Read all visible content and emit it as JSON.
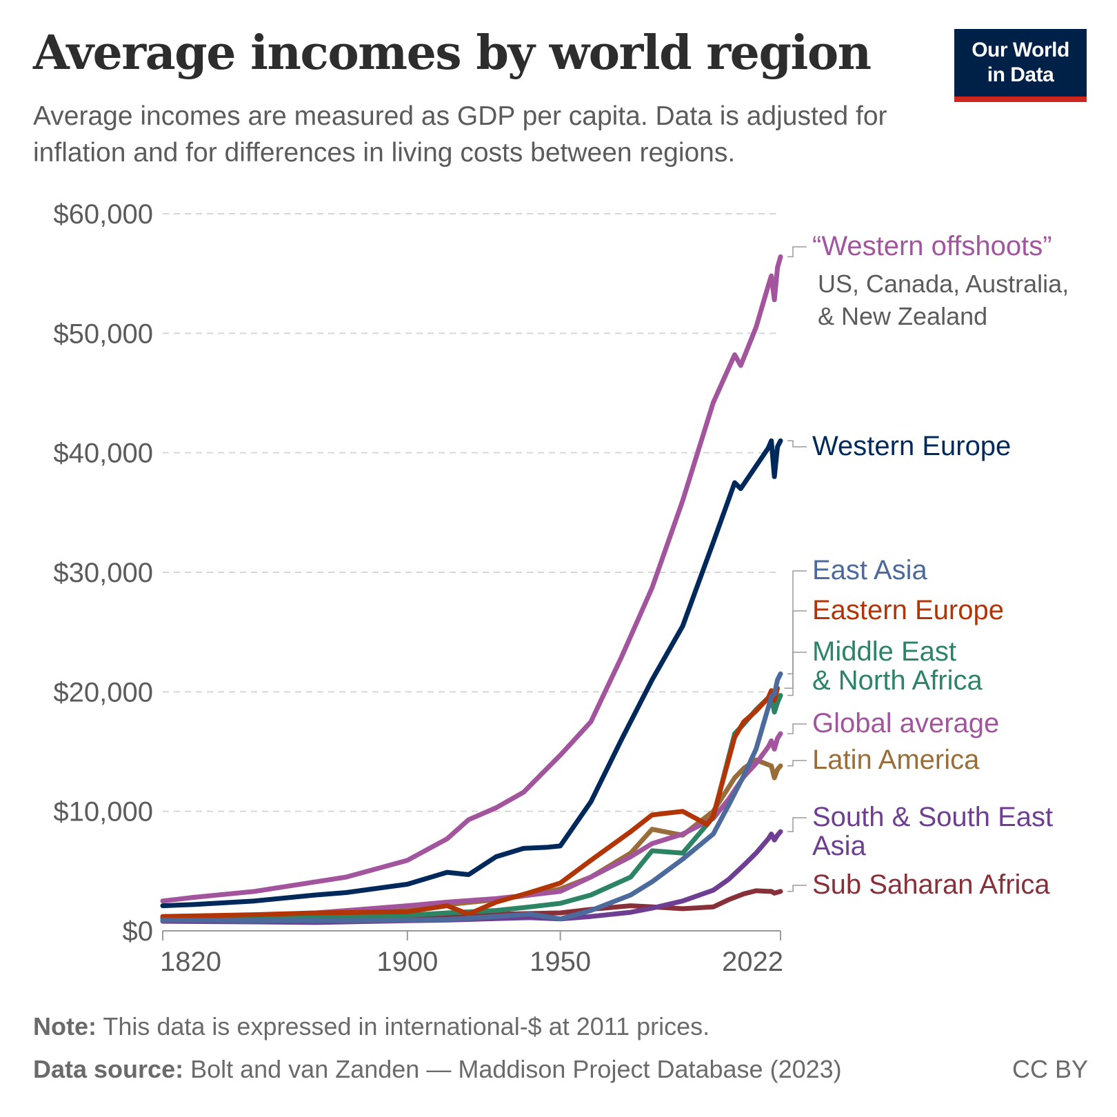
{
  "header": {
    "title": "Average incomes by world region",
    "subtitle": "Average incomes are measured as GDP per capita. Data is adjusted for inflation and for differences in living costs between regions.",
    "logo_line1": "Our World",
    "logo_line2": "in Data"
  },
  "footer": {
    "note_label": "Note:",
    "note_text": " This data is expressed in international-$ at 2011 prices.",
    "source_label": "Data source:",
    "source_text": " Bolt and van Zanden — Maddison Project Database (2023)",
    "license": "CC BY"
  },
  "chart_data": {
    "type": "line",
    "title": "Average incomes by world region",
    "xlabel": "",
    "ylabel": "",
    "xlim": [
      1820,
      2022
    ],
    "ylim": [
      0,
      60000
    ],
    "grid": true,
    "x_ticks": [
      1820,
      1900,
      1950,
      2022
    ],
    "x_tick_labels": [
      "1820",
      "1900",
      "1950",
      "2022"
    ],
    "y_ticks": [
      0,
      10000,
      20000,
      30000,
      40000,
      50000,
      60000
    ],
    "y_tick_labels": [
      "$0",
      "$10,000",
      "$20,000",
      "$30,000",
      "$40,000",
      "$50,000",
      "$60,000"
    ],
    "series": [
      {
        "name": "Sub Saharan Africa",
        "label_lines": [
          "Sub Saharan Africa"
        ],
        "color": "#883039",
        "x": [
          1820,
          1850,
          1870,
          1900,
          1913,
          1940,
          1950,
          1960,
          1973,
          1980,
          1990,
          2000,
          2005,
          2010,
          2014,
          2018,
          2019,
          2020,
          2022
        ],
        "y": [
          1100,
          1150,
          1200,
          1250,
          1300,
          1450,
          1500,
          1800,
          2100,
          2000,
          1850,
          2000,
          2600,
          3100,
          3350,
          3300,
          3300,
          3150,
          3300
        ]
      },
      {
        "name": "South & South East Asia",
        "label_lines": [
          "South & South East",
          "Asia"
        ],
        "color": "#6d3e91",
        "x": [
          1820,
          1850,
          1870,
          1900,
          1913,
          1940,
          1950,
          1960,
          1973,
          1980,
          1990,
          2000,
          2005,
          2010,
          2014,
          2018,
          2019,
          2020,
          2021,
          2022
        ],
        "y": [
          800,
          750,
          700,
          850,
          900,
          1100,
          1000,
          1200,
          1550,
          1900,
          2500,
          3400,
          4300,
          5500,
          6500,
          7700,
          8100,
          7600,
          8000,
          8300
        ]
      },
      {
        "name": "Latin America",
        "label_lines": [
          "Latin America"
        ],
        "color": "#996d39",
        "x": [
          1820,
          1850,
          1870,
          1900,
          1913,
          1929,
          1940,
          1950,
          1960,
          1973,
          1980,
          1990,
          2000,
          2007,
          2010,
          2014,
          2018,
          2019,
          2020,
          2021,
          2022
        ],
        "y": [
          1200,
          1300,
          1400,
          1700,
          2200,
          2600,
          3000,
          3500,
          4500,
          6500,
          8500,
          8000,
          10000,
          12800,
          13600,
          14300,
          13900,
          13800,
          12800,
          13500,
          13800
        ]
      },
      {
        "name": "Global average",
        "label_lines": [
          "Global average"
        ],
        "color": "#a2559c",
        "x": [
          1820,
          1850,
          1870,
          1900,
          1913,
          1929,
          1940,
          1950,
          1960,
          1973,
          1980,
          1990,
          2000,
          2005,
          2010,
          2014,
          2018,
          2019,
          2020,
          2021,
          2022
        ],
        "y": [
          1100,
          1300,
          1500,
          2100,
          2400,
          2700,
          3000,
          3300,
          4500,
          6200,
          7300,
          8100,
          9400,
          11000,
          12900,
          14000,
          15400,
          15900,
          15200,
          16100,
          16500
        ]
      },
      {
        "name": "Middle East & North Africa",
        "label_lines": [
          "Middle East",
          "& North Africa"
        ],
        "color": "#2c8465",
        "x": [
          1820,
          1850,
          1870,
          1900,
          1913,
          1929,
          1940,
          1950,
          1960,
          1973,
          1980,
          1990,
          2000,
          2007,
          2010,
          2014,
          2018,
          2019,
          2020,
          2021,
          2022
        ],
        "y": [
          1000,
          1050,
          1100,
          1300,
          1500,
          1700,
          2000,
          2300,
          3000,
          4500,
          6700,
          6500,
          9500,
          16500,
          17300,
          18500,
          19500,
          19600,
          18300,
          19100,
          19700
        ]
      },
      {
        "name": "Eastern Europe",
        "label_lines": [
          "Eastern Europe"
        ],
        "color": "#b13507",
        "x": [
          1820,
          1850,
          1870,
          1900,
          1913,
          1920,
          1929,
          1940,
          1950,
          1960,
          1973,
          1980,
          1990,
          1998,
          2000,
          2007,
          2010,
          2014,
          2018,
          2019,
          2020,
          2021
        ],
        "y": [
          1200,
          1350,
          1500,
          1600,
          2100,
          1400,
          2400,
          3200,
          4000,
          5900,
          8300,
          9700,
          10000,
          8900,
          9600,
          16200,
          17500,
          18400,
          19500,
          20100,
          19300,
          20300
        ]
      },
      {
        "name": "East Asia",
        "label_lines": [
          "East Asia"
        ],
        "color": "#4c6a9c",
        "x": [
          1820,
          1850,
          1870,
          1900,
          1913,
          1929,
          1940,
          1950,
          1960,
          1973,
          1980,
          1990,
          2000,
          2005,
          2010,
          2014,
          2018,
          2019,
          2020,
          2021,
          2022
        ],
        "y": [
          900,
          850,
          850,
          900,
          950,
          1200,
          1400,
          1000,
          1700,
          3000,
          4100,
          6000,
          8100,
          10500,
          13000,
          15200,
          18700,
          19600,
          19800,
          21000,
          21500
        ]
      },
      {
        "name": "Western Europe",
        "label_lines": [
          "Western Europe"
        ],
        "color": "#00295b",
        "x": [
          1820,
          1830,
          1850,
          1870,
          1880,
          1900,
          1913,
          1920,
          1929,
          1938,
          1946,
          1950,
          1960,
          1970,
          1980,
          1990,
          2000,
          2007,
          2009,
          2018,
          2019,
          2020,
          2021,
          2022
        ],
        "y": [
          2100,
          2200,
          2500,
          3000,
          3200,
          3900,
          4900,
          4700,
          6200,
          6900,
          7000,
          7100,
          10800,
          16000,
          21000,
          25500,
          32500,
          37500,
          37000,
          40400,
          41000,
          38000,
          40500,
          41000
        ]
      },
      {
        "name": "“Western offshoots”",
        "label_lines": [
          "“Western offshoots”"
        ],
        "sub_label_lines": [
          "US, Canada, Australia,",
          "& New Zealand"
        ],
        "color": "#a2559c",
        "x": [
          1820,
          1830,
          1850,
          1870,
          1880,
          1900,
          1913,
          1920,
          1929,
          1938,
          1950,
          1960,
          1970,
          1980,
          1990,
          2000,
          2007,
          2009,
          2014,
          2018,
          2019,
          2020,
          2021,
          2022
        ],
        "y": [
          2500,
          2800,
          3300,
          4100,
          4500,
          5900,
          7700,
          9300,
          10300,
          11600,
          14700,
          17500,
          22900,
          28700,
          36000,
          44200,
          48200,
          47300,
          50500,
          54000,
          54800,
          52800,
          55500,
          56400
        ]
      }
    ]
  }
}
